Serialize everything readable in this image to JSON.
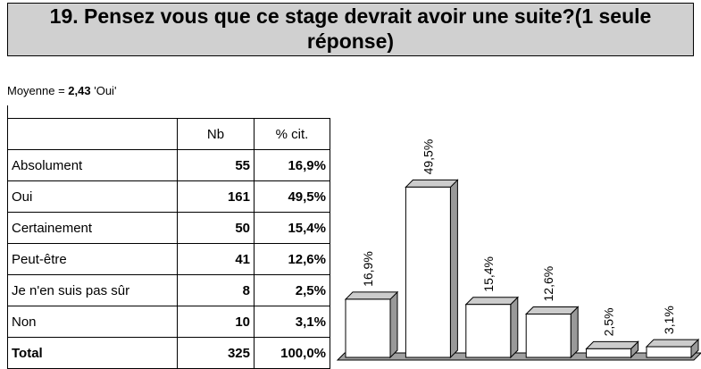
{
  "header": {
    "title": "19. Pensez vous que ce stage devrait avoir une suite?(1 seule réponse)"
  },
  "summary": {
    "label": "Moyenne = ",
    "value": "2,43",
    "answer": "'Oui'"
  },
  "table": {
    "columns": [
      "Nb",
      "% cit."
    ],
    "rows": [
      [
        "Absolument",
        "55",
        "16,9%"
      ],
      [
        "Oui",
        "161",
        "49,5%"
      ],
      [
        "Certainement",
        "50",
        "15,4%"
      ],
      [
        "Peut-être",
        "41",
        "12,6%"
      ],
      [
        "Je n'en suis pas sûr",
        "8",
        "2,5%"
      ],
      [
        "Non",
        "10",
        "3,1%"
      ]
    ],
    "total": [
      "Total",
      "325",
      "100,0%"
    ]
  },
  "chart_data": {
    "type": "bar",
    "values": [
      16.9,
      49.5,
      15.4,
      12.6,
      2.5,
      3.1
    ],
    "value_labels": [
      "16,9%",
      "49,5%",
      "15,4%",
      "12,6%",
      "2,5%",
      "3,1%"
    ],
    "color": "#ffffff"
  }
}
